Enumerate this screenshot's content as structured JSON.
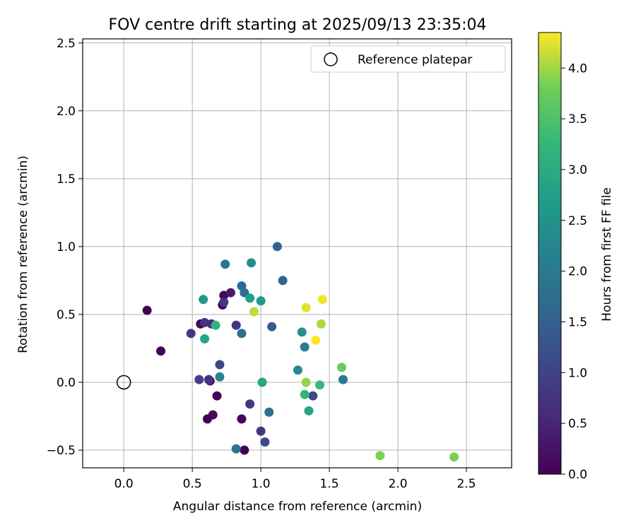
{
  "chart_data": {
    "type": "scatter",
    "title": "FOV centre drift starting at 2025/09/13 23:35:04",
    "xlabel": "Angular distance from reference (arcmin)",
    "ylabel": "Rotation from reference (arcmin)",
    "xlim": [
      -0.3,
      2.83
    ],
    "ylim": [
      -0.63,
      2.53
    ],
    "xticks": [
      "0.0",
      "0.5",
      "1.0",
      "1.5",
      "2.0",
      "2.5"
    ],
    "xtick_values": [
      0,
      0.5,
      1.0,
      1.5,
      2.0,
      2.5
    ],
    "yticks": [
      "−0.5",
      "0.0",
      "0.5",
      "1.0",
      "1.5",
      "2.0",
      "2.5"
    ],
    "ytick_values": [
      -0.5,
      0,
      0.5,
      1.0,
      1.5,
      2.0,
      2.5
    ],
    "grid": true,
    "legend": {
      "position": "top-right",
      "entries": [
        "Reference platepar"
      ]
    },
    "reference_point": {
      "x": 0.0,
      "y": 0.0
    },
    "colorbar": {
      "label": "Hours from first FF file",
      "colormap": "viridis",
      "range": [
        0.0,
        4.35
      ],
      "ticks": [
        "0.0",
        "0.5",
        "1.0",
        "1.5",
        "2.0",
        "2.5",
        "3.0",
        "3.5",
        "4.0"
      ],
      "tick_values": [
        0,
        0.5,
        1.0,
        1.5,
        2.0,
        2.5,
        3.0,
        3.5,
        4.0
      ]
    },
    "points": [
      {
        "x": 0.17,
        "y": 0.53,
        "c": 0.0
      },
      {
        "x": 0.27,
        "y": 0.23,
        "c": 0.05
      },
      {
        "x": 0.73,
        "y": 0.64,
        "c": 0.1
      },
      {
        "x": 0.72,
        "y": 0.57,
        "c": 0.1
      },
      {
        "x": 0.78,
        "y": 0.66,
        "c": 0.35
      },
      {
        "x": 0.56,
        "y": 0.43,
        "c": 0.1
      },
      {
        "x": 0.68,
        "y": -0.1,
        "c": 0.05
      },
      {
        "x": 0.65,
        "y": -0.24,
        "c": 0.1
      },
      {
        "x": 0.61,
        "y": -0.27,
        "c": 0.0
      },
      {
        "x": 0.86,
        "y": -0.27,
        "c": 0.05
      },
      {
        "x": 0.88,
        "y": -0.5,
        "c": 0.0
      },
      {
        "x": 0.63,
        "y": 0.01,
        "c": 0.3
      },
      {
        "x": 0.62,
        "y": 0.02,
        "c": 0.7
      },
      {
        "x": 0.49,
        "y": 0.36,
        "c": 0.8
      },
      {
        "x": 0.59,
        "y": 0.44,
        "c": 0.75
      },
      {
        "x": 0.64,
        "y": 0.43,
        "c": 0.6
      },
      {
        "x": 0.73,
        "y": 0.59,
        "c": 0.8
      },
      {
        "x": 0.82,
        "y": 0.42,
        "c": 0.75
      },
      {
        "x": 0.55,
        "y": 0.02,
        "c": 0.95
      },
      {
        "x": 0.7,
        "y": 0.13,
        "c": 1.0
      },
      {
        "x": 0.92,
        "y": -0.16,
        "c": 0.8
      },
      {
        "x": 1.0,
        "y": -0.36,
        "c": 0.8
      },
      {
        "x": 1.03,
        "y": -0.44,
        "c": 1.1
      },
      {
        "x": 1.38,
        "y": -0.1,
        "c": 1.05
      },
      {
        "x": 1.08,
        "y": 0.41,
        "c": 1.4
      },
      {
        "x": 1.12,
        "y": 1.0,
        "c": 1.55
      },
      {
        "x": 1.16,
        "y": 0.75,
        "c": 1.6
      },
      {
        "x": 0.86,
        "y": 0.71,
        "c": 1.65
      },
      {
        "x": 0.88,
        "y": 0.66,
        "c": 1.8
      },
      {
        "x": 0.86,
        "y": 0.36,
        "c": 1.7
      },
      {
        "x": 0.74,
        "y": 0.87,
        "c": 1.9
      },
      {
        "x": 1.06,
        "y": -0.22,
        "c": 1.8
      },
      {
        "x": 0.82,
        "y": -0.49,
        "c": 1.9
      },
      {
        "x": 1.32,
        "y": 0.26,
        "c": 2.1
      },
      {
        "x": 1.6,
        "y": 0.02,
        "c": 2.0
      },
      {
        "x": 0.7,
        "y": 0.04,
        "c": 2.2
      },
      {
        "x": 0.93,
        "y": 0.88,
        "c": 2.4
      },
      {
        "x": 1.3,
        "y": 0.37,
        "c": 2.5
      },
      {
        "x": 1.27,
        "y": 0.09,
        "c": 2.35
      },
      {
        "x": 0.58,
        "y": 0.61,
        "c": 2.65
      },
      {
        "x": 0.92,
        "y": 0.62,
        "c": 2.75
      },
      {
        "x": 1.0,
        "y": 0.6,
        "c": 2.65
      },
      {
        "x": 0.59,
        "y": 0.32,
        "c": 2.9
      },
      {
        "x": 1.01,
        "y": 0.0,
        "c": 2.9
      },
      {
        "x": 1.35,
        "y": -0.21,
        "c": 2.85
      },
      {
        "x": 0.67,
        "y": 0.42,
        "c": 3.15
      },
      {
        "x": 1.32,
        "y": -0.09,
        "c": 3.2
      },
      {
        "x": 1.43,
        "y": -0.02,
        "c": 3.3
      },
      {
        "x": 1.59,
        "y": 0.11,
        "c": 3.75
      },
      {
        "x": 1.87,
        "y": -0.54,
        "c": 3.85
      },
      {
        "x": 2.41,
        "y": -0.55,
        "c": 3.85
      },
      {
        "x": 1.33,
        "y": 0.0,
        "c": 3.95
      },
      {
        "x": 0.95,
        "y": 0.52,
        "c": 4.1
      },
      {
        "x": 1.44,
        "y": 0.43,
        "c": 4.05
      },
      {
        "x": 1.33,
        "y": 0.55,
        "c": 4.25
      },
      {
        "x": 1.45,
        "y": 0.61,
        "c": 4.3
      },
      {
        "x": 1.4,
        "y": 0.31,
        "c": 4.35
      }
    ]
  }
}
